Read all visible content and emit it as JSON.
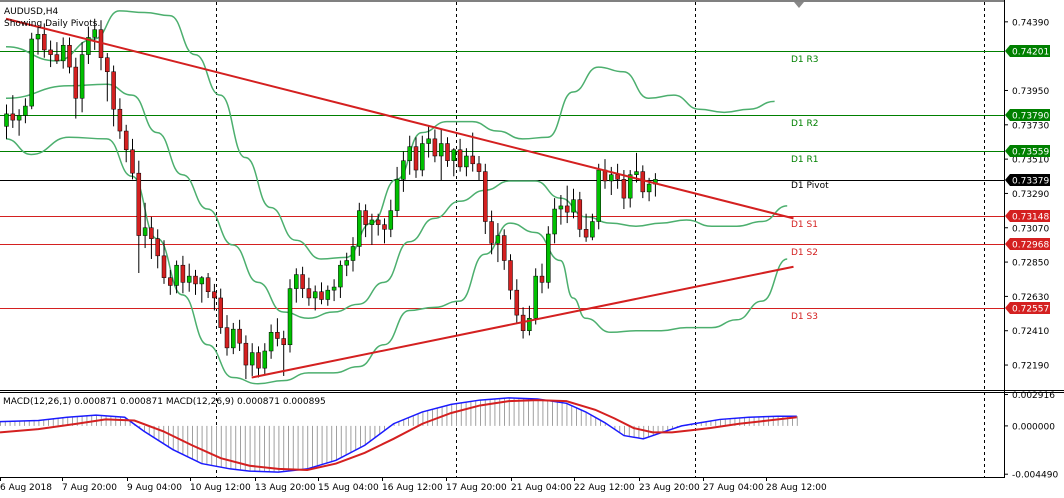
{
  "header": {
    "symbol_line": "AUDUSD,H4",
    "subtitle": "Showing Daily Pivots."
  },
  "macd_header": "MACD(12,26,1) 0.000871 0.000871 MACD(12,26,9) 0.000871 0.000895",
  "colors": {
    "bull": "#00c000",
    "bear": "#d42020",
    "wick": "#000000",
    "band": "#4caf6e",
    "trendline": "#d42020",
    "resistance": "#008000",
    "support": "#d42020",
    "current": "#000000",
    "macd_blue": "#1a1aff",
    "macd_red": "#d42020",
    "hist": "#a0a0a0"
  },
  "pivot_labels": {
    "r3": "D1 R3",
    "r2": "D1 R2",
    "r1": "D1 R1",
    "pivot": "D1 Pivot",
    "s1": "D1 S1",
    "s2": "D1 S2",
    "s3": "D1 S3"
  },
  "price_tags": {
    "r3": "0.74201",
    "r2": "0.73790",
    "r1": "0.73559",
    "current": "0.73379",
    "s1": "0.73148",
    "s2": "0.72968",
    "s3": "0.72557"
  },
  "chart_data": {
    "type": "candlestick",
    "symbol": "AUDUSD",
    "timeframe": "H4",
    "y_ticks": [
      "0.74390",
      "0.73950",
      "0.73730",
      "0.73510",
      "0.73290",
      "0.73070",
      "0.72850",
      "0.72630",
      "0.72410",
      "0.72190"
    ],
    "x_ticks": [
      "6 Aug 2018",
      "7 Aug 20:00",
      "9 Aug 04:00",
      "10 Aug 12:00",
      "13 Aug 20:00",
      "15 Aug 04:00",
      "16 Aug 12:00",
      "17 Aug 20:00",
      "21 Aug 04:00",
      "22 Aug 12:00",
      "23 Aug 20:00",
      "27 Aug 04:00",
      "28 Aug 12:00"
    ],
    "ylim": [
      0.7203,
      0.7453
    ],
    "pivots": {
      "r3": 0.74201,
      "r2": 0.7379,
      "r1": 0.73559,
      "pivot": 0.73379,
      "s1": 0.73148,
      "s2": 0.72968,
      "s3": 0.72557
    },
    "trendlines": [
      {
        "from": [
          0,
          0.7441
        ],
        "to": [
          125,
          0.7313
        ]
      },
      {
        "from": [
          39,
          0.7211
        ],
        "to": [
          125,
          0.7282
        ]
      }
    ],
    "candles": [
      [
        0.7372,
        0.7386,
        0.7364,
        0.738
      ],
      [
        0.738,
        0.7392,
        0.7371,
        0.7376
      ],
      [
        0.7376,
        0.7383,
        0.7366,
        0.7379
      ],
      [
        0.7379,
        0.739,
        0.7374,
        0.7385
      ],
      [
        0.7385,
        0.7432,
        0.7383,
        0.7428
      ],
      [
        0.7428,
        0.7436,
        0.7418,
        0.7431
      ],
      [
        0.7431,
        0.7438,
        0.7416,
        0.7421
      ],
      [
        0.7421,
        0.7427,
        0.741,
        0.7418
      ],
      [
        0.7418,
        0.7426,
        0.7412,
        0.7414
      ],
      [
        0.7414,
        0.7429,
        0.7409,
        0.7424
      ],
      [
        0.7424,
        0.7429,
        0.7406,
        0.741
      ],
      [
        0.741,
        0.7416,
        0.7377,
        0.739
      ],
      [
        0.739,
        0.7426,
        0.7381,
        0.7418
      ],
      [
        0.7418,
        0.7436,
        0.7412,
        0.7429
      ],
      [
        0.7429,
        0.7441,
        0.7421,
        0.7434
      ],
      [
        0.7434,
        0.744,
        0.7408,
        0.7416
      ],
      [
        0.7416,
        0.7419,
        0.7388,
        0.7407
      ],
      [
        0.7407,
        0.7411,
        0.7372,
        0.7383
      ],
      [
        0.7383,
        0.739,
        0.7364,
        0.7369
      ],
      [
        0.7369,
        0.7373,
        0.7349,
        0.7357
      ],
      [
        0.7357,
        0.7364,
        0.7338,
        0.7342
      ],
      [
        0.7342,
        0.735,
        0.7278,
        0.7302
      ],
      [
        0.7302,
        0.7323,
        0.7294,
        0.7307
      ],
      [
        0.7307,
        0.7314,
        0.7287,
        0.73
      ],
      [
        0.73,
        0.7306,
        0.7281,
        0.7289
      ],
      [
        0.7289,
        0.7299,
        0.7271,
        0.7275
      ],
      [
        0.7275,
        0.728,
        0.7264,
        0.727
      ],
      [
        0.727,
        0.7286,
        0.7265,
        0.7283
      ],
      [
        0.7283,
        0.7289,
        0.7265,
        0.7272
      ],
      [
        0.7272,
        0.7284,
        0.7266,
        0.7276
      ],
      [
        0.7276,
        0.728,
        0.7264,
        0.7271
      ],
      [
        0.7271,
        0.7276,
        0.7259,
        0.7275
      ],
      [
        0.7275,
        0.7278,
        0.7262,
        0.7266
      ],
      [
        0.7266,
        0.7271,
        0.7254,
        0.7262
      ],
      [
        0.7262,
        0.7268,
        0.7239,
        0.7243
      ],
      [
        0.7243,
        0.7251,
        0.7225,
        0.723
      ],
      [
        0.723,
        0.7246,
        0.7226,
        0.7242
      ],
      [
        0.7242,
        0.7248,
        0.7228,
        0.7233
      ],
      [
        0.7233,
        0.7238,
        0.721,
        0.7219
      ],
      [
        0.7219,
        0.7233,
        0.7212,
        0.7227
      ],
      [
        0.7227,
        0.7231,
        0.7211,
        0.7217
      ],
      [
        0.7217,
        0.7233,
        0.7213,
        0.7228
      ],
      [
        0.7228,
        0.7245,
        0.7223,
        0.724
      ],
      [
        0.724,
        0.7249,
        0.7231,
        0.7236
      ],
      [
        0.7236,
        0.7241,
        0.7212,
        0.7232
      ],
      [
        0.7232,
        0.7274,
        0.7227,
        0.7268
      ],
      [
        0.7268,
        0.7281,
        0.7259,
        0.7277
      ],
      [
        0.7277,
        0.7282,
        0.7262,
        0.7268
      ],
      [
        0.7268,
        0.7275,
        0.7257,
        0.7262
      ],
      [
        0.7262,
        0.727,
        0.7254,
        0.7266
      ],
      [
        0.7266,
        0.7272,
        0.7258,
        0.7261
      ],
      [
        0.7261,
        0.727,
        0.7257,
        0.7267
      ],
      [
        0.7267,
        0.7274,
        0.726,
        0.7269
      ],
      [
        0.7269,
        0.7286,
        0.7262,
        0.7283
      ],
      [
        0.7283,
        0.7291,
        0.7276,
        0.7286
      ],
      [
        0.7286,
        0.7301,
        0.7279,
        0.7295
      ],
      [
        0.7295,
        0.7323,
        0.7289,
        0.7318
      ],
      [
        0.7318,
        0.7322,
        0.7301,
        0.7309
      ],
      [
        0.7309,
        0.7316,
        0.7296,
        0.7312
      ],
      [
        0.7312,
        0.7316,
        0.7302,
        0.7309
      ],
      [
        0.7309,
        0.7313,
        0.7297,
        0.7306
      ],
      [
        0.7306,
        0.7325,
        0.7301,
        0.7318
      ],
      [
        0.7318,
        0.7346,
        0.7314,
        0.7338
      ],
      [
        0.7338,
        0.7356,
        0.733,
        0.735
      ],
      [
        0.735,
        0.7366,
        0.7341,
        0.7359
      ],
      [
        0.7359,
        0.7365,
        0.7339,
        0.7344
      ],
      [
        0.7344,
        0.7366,
        0.734,
        0.7361
      ],
      [
        0.7361,
        0.7372,
        0.7352,
        0.7364
      ],
      [
        0.7364,
        0.737,
        0.7349,
        0.7353
      ],
      [
        0.7353,
        0.737,
        0.7337,
        0.7361
      ],
      [
        0.7361,
        0.7365,
        0.7346,
        0.735
      ],
      [
        0.735,
        0.7358,
        0.734,
        0.7357
      ],
      [
        0.7357,
        0.7364,
        0.7343,
        0.7346
      ],
      [
        0.7346,
        0.7358,
        0.734,
        0.7353
      ],
      [
        0.7353,
        0.7368,
        0.7343,
        0.7348
      ],
      [
        0.7348,
        0.7353,
        0.7337,
        0.7343
      ],
      [
        0.7343,
        0.7348,
        0.7303,
        0.7311
      ],
      [
        0.7311,
        0.7318,
        0.729,
        0.7297
      ],
      [
        0.7297,
        0.731,
        0.7285,
        0.7302
      ],
      [
        0.7302,
        0.7306,
        0.728,
        0.7286
      ],
      [
        0.7286,
        0.729,
        0.7261,
        0.7267
      ],
      [
        0.7267,
        0.7274,
        0.7246,
        0.7251
      ],
      [
        0.7251,
        0.7256,
        0.7236,
        0.7241
      ],
      [
        0.7241,
        0.7257,
        0.7238,
        0.7249
      ],
      [
        0.7249,
        0.7281,
        0.7245,
        0.7276
      ],
      [
        0.7276,
        0.7284,
        0.7265,
        0.7272
      ],
      [
        0.7272,
        0.7308,
        0.7268,
        0.7303
      ],
      [
        0.7303,
        0.7326,
        0.7297,
        0.7319
      ],
      [
        0.7319,
        0.7328,
        0.7309,
        0.7321
      ],
      [
        0.7321,
        0.7334,
        0.731,
        0.7317
      ],
      [
        0.7317,
        0.7332,
        0.7313,
        0.7325
      ],
      [
        0.7325,
        0.733,
        0.7301,
        0.7306
      ],
      [
        0.7306,
        0.7316,
        0.7298,
        0.7301
      ],
      [
        0.7301,
        0.7316,
        0.7299,
        0.7311
      ],
      [
        0.7311,
        0.7348,
        0.7306,
        0.7344
      ],
      [
        0.7344,
        0.7351,
        0.7332,
        0.7337
      ],
      [
        0.7337,
        0.7346,
        0.7328,
        0.7341
      ],
      [
        0.7341,
        0.7348,
        0.7332,
        0.7338
      ],
      [
        0.7338,
        0.7344,
        0.7319,
        0.7326
      ],
      [
        0.7326,
        0.7344,
        0.732,
        0.7341
      ],
      [
        0.7341,
        0.7355,
        0.7336,
        0.7343
      ],
      [
        0.7343,
        0.7347,
        0.7326,
        0.733
      ],
      [
        0.733,
        0.7339,
        0.7324,
        0.7335
      ],
      [
        0.7335,
        0.7342,
        0.7327,
        0.7338
      ]
    ],
    "bollinger": {
      "upper": [
        [
          0,
          0.7423
        ],
        [
          8,
          0.7414
        ],
        [
          14,
          0.7428
        ],
        [
          18,
          0.7446
        ],
        [
          22,
          0.7445
        ],
        [
          26,
          0.7443
        ],
        [
          30,
          0.7418
        ],
        [
          34,
          0.7392
        ],
        [
          38,
          0.7352
        ],
        [
          42,
          0.732
        ],
        [
          46,
          0.7299
        ],
        [
          50,
          0.7287
        ],
        [
          54,
          0.7288
        ],
        [
          58,
          0.731
        ],
        [
          62,
          0.7338
        ],
        [
          66,
          0.7368
        ],
        [
          70,
          0.7375
        ],
        [
          74,
          0.7375
        ],
        [
          78,
          0.7369
        ],
        [
          82,
          0.7364
        ],
        [
          86,
          0.7365
        ],
        [
          90,
          0.7394
        ],
        [
          94,
          0.741
        ],
        [
          98,
          0.7407
        ],
        [
          102,
          0.739
        ],
        [
          106,
          0.7392
        ],
        [
          110,
          0.7383
        ],
        [
          114,
          0.7381
        ],
        [
          118,
          0.7383
        ],
        [
          122,
          0.7388
        ]
      ],
      "middle": [
        [
          0,
          0.739
        ],
        [
          10,
          0.7398
        ],
        [
          16,
          0.7399
        ],
        [
          20,
          0.7392
        ],
        [
          24,
          0.7368
        ],
        [
          28,
          0.7341
        ],
        [
          32,
          0.7319
        ],
        [
          36,
          0.7296
        ],
        [
          40,
          0.7272
        ],
        [
          44,
          0.7253
        ],
        [
          48,
          0.7249
        ],
        [
          52,
          0.7253
        ],
        [
          56,
          0.7258
        ],
        [
          60,
          0.7272
        ],
        [
          64,
          0.7298
        ],
        [
          68,
          0.7313
        ],
        [
          72,
          0.7324
        ],
        [
          76,
          0.7331
        ],
        [
          80,
          0.7337
        ],
        [
          84,
          0.7337
        ],
        [
          88,
          0.7326
        ],
        [
          92,
          0.7314
        ],
        [
          96,
          0.731
        ],
        [
          100,
          0.7308
        ],
        [
          104,
          0.731
        ],
        [
          108,
          0.7312
        ],
        [
          112,
          0.7308
        ],
        [
          116,
          0.7308
        ],
        [
          120,
          0.7311
        ],
        [
          124,
          0.7321
        ]
      ],
      "lower": [
        [
          0,
          0.7364
        ],
        [
          4,
          0.7354
        ],
        [
          10,
          0.7365
        ],
        [
          16,
          0.7364
        ],
        [
          20,
          0.734
        ],
        [
          24,
          0.73
        ],
        [
          28,
          0.7264
        ],
        [
          32,
          0.7232
        ],
        [
          36,
          0.7211
        ],
        [
          40,
          0.7207
        ],
        [
          44,
          0.7209
        ],
        [
          48,
          0.7214
        ],
        [
          52,
          0.7214
        ],
        [
          56,
          0.7218
        ],
        [
          60,
          0.7232
        ],
        [
          64,
          0.7254
        ],
        [
          68,
          0.7256
        ],
        [
          72,
          0.726
        ],
        [
          76,
          0.729
        ],
        [
          80,
          0.731
        ],
        [
          84,
          0.7304
        ],
        [
          88,
          0.7286
        ],
        [
          90,
          0.7262
        ],
        [
          92,
          0.7249
        ],
        [
          96,
          0.724
        ],
        [
          100,
          0.7241
        ],
        [
          104,
          0.7241
        ],
        [
          108,
          0.7243
        ],
        [
          112,
          0.7243
        ],
        [
          116,
          0.7248
        ],
        [
          120,
          0.726
        ],
        [
          124,
          0.7287
        ]
      ]
    },
    "macd": {
      "y_ticks": [
        "0.002916",
        "0.000000",
        "-0.004490"
      ],
      "ylim": [
        -0.00475,
        0.00315
      ],
      "macd_line": [
        [
          0,
          0.0004
        ],
        [
          8,
          0.0005
        ],
        [
          14,
          0.0008
        ],
        [
          20,
          0.001
        ],
        [
          26,
          0.0008
        ],
        [
          30,
          -0.0005
        ],
        [
          36,
          -0.0022
        ],
        [
          42,
          -0.0035
        ],
        [
          48,
          -0.004
        ],
        [
          52,
          -0.0042
        ],
        [
          58,
          -0.0043
        ],
        [
          64,
          -0.004
        ],
        [
          70,
          -0.0032
        ],
        [
          76,
          -0.0018
        ],
        [
          82,
          0.0002
        ],
        [
          88,
          0.0013
        ],
        [
          94,
          0.002
        ],
        [
          100,
          0.0024
        ],
        [
          106,
          0.0026
        ],
        [
          112,
          0.0025
        ],
        [
          118,
          0.0021
        ],
        [
          122,
          0.0013
        ],
        [
          126,
          0.0003
        ],
        [
          130,
          -0.0009
        ],
        [
          134,
          -0.0012
        ],
        [
          138,
          -0.0006
        ],
        [
          142,
          0.0
        ],
        [
          146,
          0.0003
        ],
        [
          150,
          0.0006
        ],
        [
          156,
          0.0008
        ],
        [
          162,
          0.0009
        ],
        [
          166,
          0.0009
        ]
      ],
      "signal_line": [
        [
          0,
          -0.0006
        ],
        [
          8,
          -0.0003
        ],
        [
          16,
          0.0002
        ],
        [
          22,
          0.0006
        ],
        [
          28,
          0.0005
        ],
        [
          34,
          -0.0005
        ],
        [
          40,
          -0.0018
        ],
        [
          46,
          -0.003
        ],
        [
          52,
          -0.0037
        ],
        [
          58,
          -0.004
        ],
        [
          64,
          -0.0041
        ],
        [
          70,
          -0.0035
        ],
        [
          76,
          -0.0025
        ],
        [
          82,
          -0.0012
        ],
        [
          88,
          0.0002
        ],
        [
          94,
          0.0012
        ],
        [
          100,
          0.0019
        ],
        [
          106,
          0.0023
        ],
        [
          112,
          0.0024
        ],
        [
          118,
          0.0023
        ],
        [
          124,
          0.0015
        ],
        [
          128,
          0.0007
        ],
        [
          132,
          -0.0002
        ],
        [
          136,
          -0.0006
        ],
        [
          140,
          -0.0006
        ],
        [
          144,
          -0.0004
        ],
        [
          148,
          -0.0002
        ],
        [
          154,
          0.0002
        ],
        [
          160,
          0.0005
        ],
        [
          166,
          0.0008
        ]
      ]
    }
  }
}
